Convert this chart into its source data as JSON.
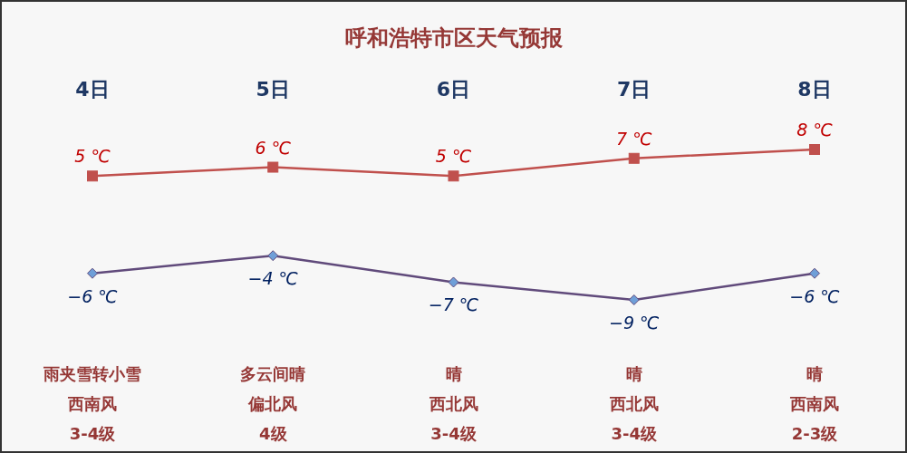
{
  "chart_data": {
    "type": "line",
    "title": "呼和浩特市区天气预报",
    "categories": [
      "4日",
      "5日",
      "6日",
      "7日",
      "8日"
    ],
    "series": [
      {
        "color": "#c0504d",
        "marker": "square",
        "values": [
          5,
          6,
          5,
          7,
          8
        ],
        "value_labels": [
          "5 ℃",
          "6 ℃",
          "5 ℃",
          "7 ℃",
          "8 ℃"
        ]
      },
      {
        "color": "#604a7b",
        "marker": "diamond",
        "values": [
          -6,
          -4,
          -7,
          -9,
          -6
        ],
        "value_labels": [
          "−6 ℃",
          "−4 ℃",
          "−7 ℃",
          "−9 ℃",
          "−6 ℃"
        ]
      }
    ],
    "annotations": [
      "雨夹雪转小雪",
      "多云间晴",
      "晴",
      "晴",
      "晴",
      "西南风",
      "偏北风",
      "西北风",
      "西北风",
      "西南风",
      "3-4级",
      "4级",
      "3-4级",
      "3-4级",
      "2-3级"
    ],
    "grid": false,
    "tick_labels": "x"
  }
}
